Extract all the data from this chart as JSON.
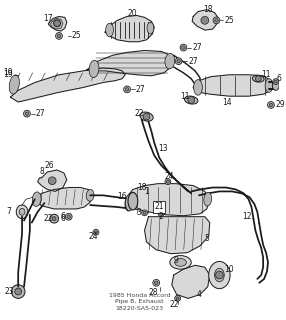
{
  "title": "1985 Honda Accord\nPipe B, Exhaust\n18220-SA5-023",
  "bg_color": "#ffffff",
  "fig_width": 2.86,
  "fig_height": 3.2,
  "dpi": 100,
  "line_color": "#1a1a1a",
  "line_width": 0.7,
  "fill_light": "#d8d8d8",
  "fill_medium": "#b8b8b8",
  "fill_dark": "#888888"
}
